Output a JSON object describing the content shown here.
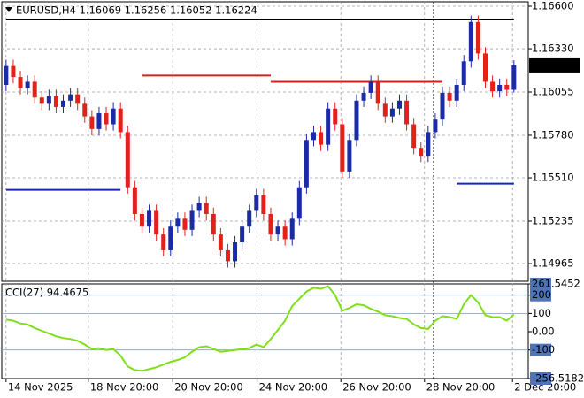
{
  "chart_data": [
    {
      "type": "candlestick",
      "title": "EURUSD,H4  1.16069 1.16256 1.16052 1.16224",
      "up_color": "#1b2aa6",
      "down_color": "#e3211b",
      "open": [
        1.161,
        1.1622,
        1.1615,
        1.1608,
        1.1612,
        1.1602,
        1.1598,
        1.1603,
        1.1596,
        1.16,
        1.1604,
        1.1598,
        1.159,
        1.1582,
        1.1592,
        1.1585,
        1.1595,
        1.158,
        1.1545,
        1.1528,
        1.152,
        1.153,
        1.1515,
        1.1505,
        1.152,
        1.1525,
        1.1518,
        1.153,
        1.1535,
        1.1528,
        1.1515,
        1.1505,
        1.1498,
        1.151,
        1.152,
        1.153,
        1.154,
        1.1528,
        1.1515,
        1.152,
        1.1512,
        1.1525,
        1.1545,
        1.1575,
        1.158,
        1.1572,
        1.1595,
        1.1585,
        1.1555,
        1.1575,
        1.16,
        1.1605,
        1.1612,
        1.1598,
        1.159,
        1.1595,
        1.16,
        1.1585,
        1.157,
        1.1565,
        1.158,
        1.1588,
        1.1605,
        1.16,
        1.161,
        1.1625,
        1.165,
        1.163,
        1.1612,
        1.1606,
        1.161,
        1.16069
      ],
      "high": [
        1.1626,
        1.1626,
        1.1619,
        1.1616,
        1.1616,
        1.1606,
        1.1607,
        1.1607,
        1.1604,
        1.1608,
        1.1608,
        1.1602,
        1.1594,
        1.1596,
        1.1596,
        1.1599,
        1.1599,
        1.1584,
        1.1549,
        1.1532,
        1.1534,
        1.1534,
        1.1519,
        1.1524,
        1.1529,
        1.1529,
        1.1534,
        1.1539,
        1.1539,
        1.1532,
        1.1519,
        1.1509,
        1.1514,
        1.1524,
        1.1534,
        1.1544,
        1.1544,
        1.1532,
        1.1524,
        1.1524,
        1.1529,
        1.1549,
        1.1579,
        1.1584,
        1.1584,
        1.1599,
        1.1599,
        1.1589,
        1.1579,
        1.1604,
        1.1609,
        1.1616,
        1.1616,
        1.1602,
        1.1599,
        1.1604,
        1.1604,
        1.1589,
        1.1574,
        1.1584,
        1.1592,
        1.1609,
        1.1609,
        1.1614,
        1.1629,
        1.1654,
        1.1654,
        1.1634,
        1.1616,
        1.1614,
        1.1614,
        1.16256
      ],
      "low": [
        1.1606,
        1.1611,
        1.1604,
        1.1604,
        1.1598,
        1.1594,
        1.1594,
        1.1592,
        1.1592,
        1.1596,
        1.1594,
        1.1586,
        1.1578,
        1.1578,
        1.1581,
        1.1581,
        1.1576,
        1.1541,
        1.1524,
        1.1516,
        1.1516,
        1.1511,
        1.1501,
        1.1501,
        1.1516,
        1.1514,
        1.1514,
        1.1526,
        1.1524,
        1.1511,
        1.1501,
        1.1494,
        1.1494,
        1.1506,
        1.1516,
        1.1526,
        1.1524,
        1.1511,
        1.1511,
        1.1508,
        1.1508,
        1.1521,
        1.1541,
        1.1571,
        1.1568,
        1.1568,
        1.1581,
        1.1551,
        1.1551,
        1.1571,
        1.1596,
        1.1601,
        1.1594,
        1.1586,
        1.1586,
        1.1591,
        1.1581,
        1.1566,
        1.1561,
        1.1561,
        1.1576,
        1.1584,
        1.1596,
        1.1596,
        1.1606,
        1.1621,
        1.1626,
        1.1608,
        1.1602,
        1.1602,
        1.1603,
        1.16052
      ],
      "close": [
        1.1622,
        1.1615,
        1.1608,
        1.1612,
        1.1602,
        1.1598,
        1.1603,
        1.1596,
        1.16,
        1.1604,
        1.1598,
        1.159,
        1.1582,
        1.1592,
        1.1585,
        1.1595,
        1.158,
        1.1545,
        1.1528,
        1.152,
        1.153,
        1.1515,
        1.1505,
        1.152,
        1.1525,
        1.1518,
        1.153,
        1.1535,
        1.1528,
        1.1515,
        1.1505,
        1.1498,
        1.151,
        1.152,
        1.153,
        1.154,
        1.1528,
        1.1515,
        1.152,
        1.1512,
        1.1525,
        1.1545,
        1.1575,
        1.158,
        1.1572,
        1.1595,
        1.1585,
        1.1555,
        1.1575,
        1.16,
        1.1605,
        1.1612,
        1.1598,
        1.159,
        1.1595,
        1.16,
        1.1585,
        1.157,
        1.1565,
        1.158,
        1.1588,
        1.1605,
        1.16,
        1.161,
        1.1625,
        1.165,
        1.163,
        1.1612,
        1.1606,
        1.161,
        1.16069,
        1.16224
      ],
      "current_price": 1.16224,
      "levels": [
        {
          "color": "#000000",
          "value": 1.16516,
          "start": 0,
          "end": 71
        },
        {
          "color": "#d42020",
          "value": 1.1616,
          "start": 19,
          "end": 37
        },
        {
          "color": "#d42020",
          "value": 1.1612,
          "start": 37,
          "end": 61
        },
        {
          "color": "#1028c0",
          "value": 1.15434,
          "start": 0,
          "end": 16
        },
        {
          "color": "#1028c0",
          "value": 1.15473,
          "start": 63,
          "end": 71
        }
      ],
      "ylim": [
        1.14853,
        1.16628
      ],
      "yticks": [
        {
          "value": 1.166,
          "label": "1.16600"
        },
        {
          "value": 1.1633,
          "label": "1.16330"
        },
        1.16055,
        {
          "value": 1.1578,
          "label": "1.15780"
        },
        {
          "value": 1.1551,
          "label": "1.15510"
        },
        1.15235,
        1.14965
      ],
      "xlim": [
        -0.6,
        73
      ],
      "xticks": [
        {
          "value": 0,
          "label": "14 Nov 2025"
        },
        {
          "value": 11.5,
          "label": "18 Nov 20:00"
        },
        {
          "value": 23.3,
          "label": "20 Nov 20:00"
        },
        {
          "value": 35.1,
          "label": "24 Nov 20:00"
        },
        {
          "value": 46.8,
          "label": "26 Nov 20:00"
        },
        {
          "value": 58.5,
          "label": "28 Nov 20:00"
        },
        {
          "value": 70.8,
          "label": "2 Dec 20:00"
        }
      ],
      "grid": true
    },
    {
      "type": "line",
      "title": "CCI(27) 94.4675",
      "color": "#7fdf1a",
      "values": [
        66,
        60,
        45,
        40,
        20,
        5,
        -10,
        -25,
        -35,
        -40,
        -50,
        -70,
        -95,
        -90,
        -100,
        -95,
        -130,
        -190,
        -210,
        -215,
        -205,
        -195,
        -180,
        -165,
        -155,
        -140,
        -110,
        -85,
        -80,
        -95,
        -110,
        -105,
        -100,
        -95,
        -90,
        -70,
        -85,
        -40,
        10,
        60,
        140,
        180,
        220,
        240,
        235,
        250,
        200,
        115,
        130,
        150,
        145,
        125,
        110,
        90,
        85,
        75,
        70,
        40,
        20,
        15,
        60,
        85,
        80,
        70,
        150,
        200,
        160,
        90,
        80,
        80,
        60,
        94.4675
      ],
      "ylim": [
        -256.5182,
        261.5452
      ],
      "yticks": [
        261.5452,
        200,
        100,
        {
          "value": 0,
          "label": "0.00"
        },
        -100,
        -256.5182
      ],
      "levels": [
        200,
        100,
        -100
      ]
    }
  ]
}
